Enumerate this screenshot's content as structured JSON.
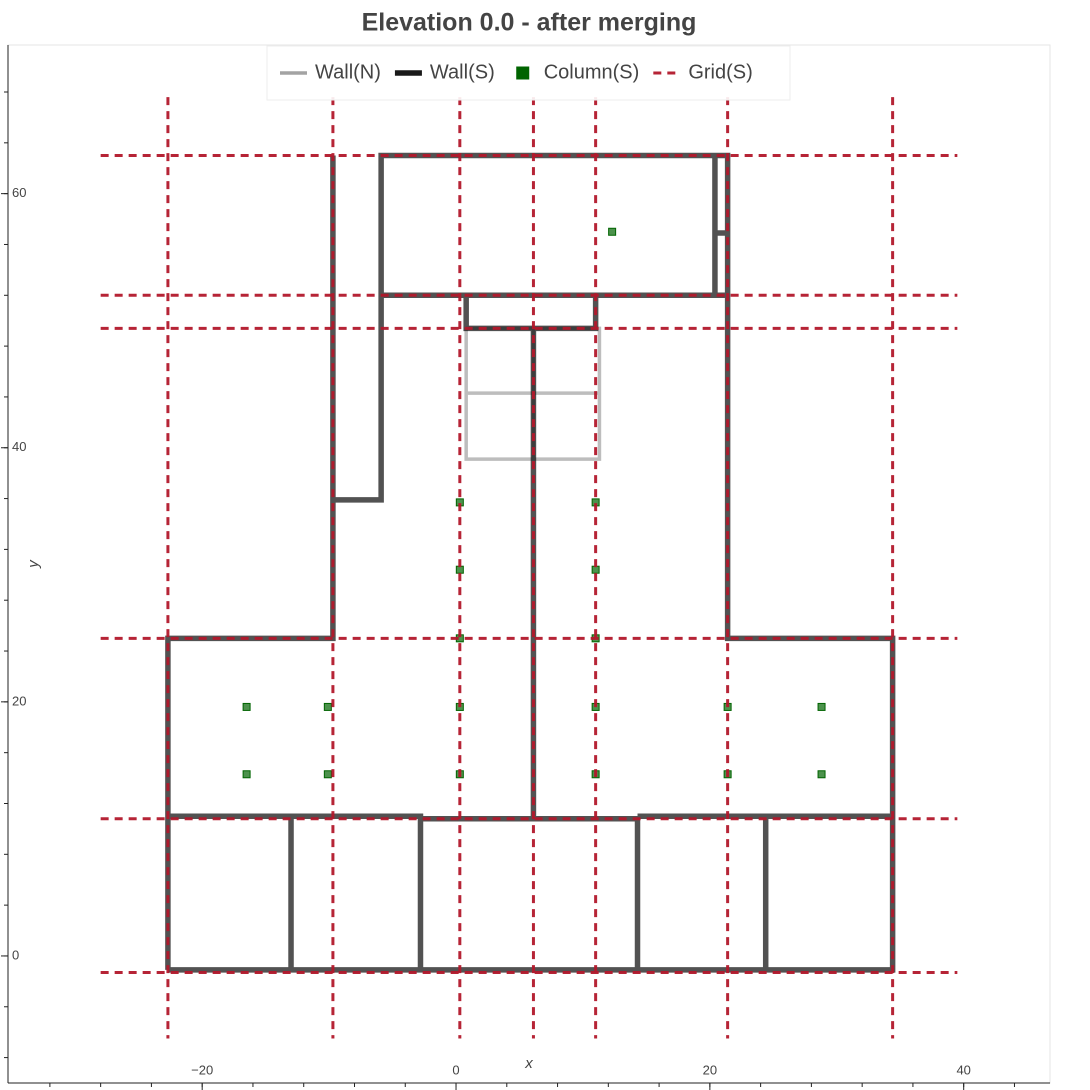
{
  "chart_data": {
    "type": "plan",
    "title": "Elevation 0.0 - after merging",
    "xlabel": "x",
    "ylabel": "y",
    "xlim": [
      -35.3,
      46.8
    ],
    "ylim": [
      -10,
      71.7
    ],
    "xticks": [
      {
        "value": -20,
        "label": "−20"
      },
      0,
      20,
      40
    ],
    "yticks": [
      0,
      20,
      40,
      60
    ],
    "xminorticks": [
      -32,
      -28,
      -24,
      -20,
      -16,
      -12,
      -8,
      -4,
      0,
      4,
      8,
      12,
      16,
      20,
      24,
      28,
      32,
      36,
      40,
      44
    ],
    "yminorticks": [
      -8,
      -4,
      0,
      4,
      8,
      12,
      16,
      20,
      24,
      28,
      32,
      36,
      40,
      44,
      48,
      52,
      56,
      60,
      64,
      68
    ],
    "legend": "top",
    "series": [
      {
        "name": "Wall(N)",
        "mode": "line",
        "style": "solid",
        "color": "#999999",
        "alpha": 0.65,
        "x": [
          0.8,
          11.3,
          11.3,
          0.8,
          0.8,
          null,
          0.8,
          11.3,
          null,
          6.1,
          6.1
        ],
        "y": [
          49.4,
          49.4,
          39.1,
          39.1,
          49.4,
          null,
          44.3,
          44.3,
          null,
          49.4,
          39.1
        ]
      },
      {
        "name": "Wall(S)",
        "mode": "line",
        "style": "solid",
        "color": "#000000",
        "alpha": 0.68,
        "x": [
          -22.7,
          34.4,
          34.4,
          21.4,
          21.4,
          -5.9,
          -5.9,
          -9.7,
          null,
          -22.7,
          -22.7,
          -9.7,
          -9.7,
          null,
          -9.7,
          -5.9,
          null,
          -22.7,
          -2.8,
          -2.8,
          null,
          -13.0,
          -13.0,
          null,
          -2.8,
          14.3,
          null,
          14.3,
          34.4,
          null,
          14.3,
          14.3,
          null,
          24.4,
          24.4,
          null,
          6.1,
          6.1,
          null,
          -5.9,
          21.4,
          null,
          0.8,
          0.8,
          11.0,
          11.0,
          null,
          20.4,
          20.4,
          null,
          20.4,
          21.4
        ],
        "y": [
          -1.1,
          -1.1,
          25.0,
          25.0,
          63.0,
          63.0,
          35.9,
          35.9,
          null,
          -1.1,
          25.0,
          25.0,
          63.0,
          null,
          35.9,
          35.9,
          null,
          11.0,
          11.0,
          -1.1,
          null,
          11.0,
          -1.1,
          null,
          10.8,
          10.8,
          null,
          11.0,
          11.0,
          null,
          11.0,
          -1.1,
          null,
          11.0,
          -1.1,
          null,
          49.4,
          10.8,
          null,
          52.0,
          52.0,
          null,
          52.0,
          49.4,
          49.4,
          52.0,
          null,
          63.0,
          52.0,
          null,
          56.9,
          56.9
        ]
      },
      {
        "name": "Column(S)",
        "mode": "scatter",
        "marker": "square",
        "color": "#006400",
        "alpha": 0.7,
        "x": [
          12.3,
          0.3,
          11.0,
          0.3,
          11.0,
          0.3,
          11.0,
          -16.5,
          -10.1,
          0.3,
          11.0,
          21.4,
          28.8,
          -16.5,
          -10.1,
          0.3,
          11.0,
          21.4,
          28.8
        ],
        "y": [
          57.0,
          35.7,
          35.7,
          30.4,
          30.4,
          25.0,
          25.0,
          19.6,
          19.6,
          19.6,
          19.6,
          19.6,
          19.6,
          14.3,
          14.3,
          14.3,
          14.3,
          14.3,
          14.3
        ]
      },
      {
        "name": "Grid(S)",
        "mode": "line",
        "style": "dashed",
        "color": "#b2182b",
        "alpha": 0.95,
        "x": [
          -22.7,
          -22.7,
          null,
          -9.7,
          -9.7,
          null,
          0.3,
          0.3,
          null,
          6.1,
          6.1,
          null,
          11.0,
          11.0,
          null,
          21.4,
          21.4,
          null,
          34.4,
          34.4,
          null,
          -28,
          39.5,
          null,
          -28,
          39.5,
          null,
          -28,
          39.5,
          null,
          -28,
          39.5,
          null,
          -28,
          39.5,
          null,
          -28,
          39.5
        ],
        "y": [
          67.6,
          -6.5,
          null,
          67.6,
          -6.5,
          null,
          67.6,
          -6.5,
          null,
          67.6,
          -6.5,
          null,
          67.6,
          -6.5,
          null,
          67.6,
          -6.5,
          null,
          67.6,
          -6.5,
          null,
          63.0,
          63.0,
          null,
          52.0,
          52.0,
          null,
          49.4,
          49.4,
          null,
          25.0,
          25.0,
          null,
          10.8,
          10.8,
          null,
          -1.3,
          -1.3
        ]
      }
    ]
  }
}
